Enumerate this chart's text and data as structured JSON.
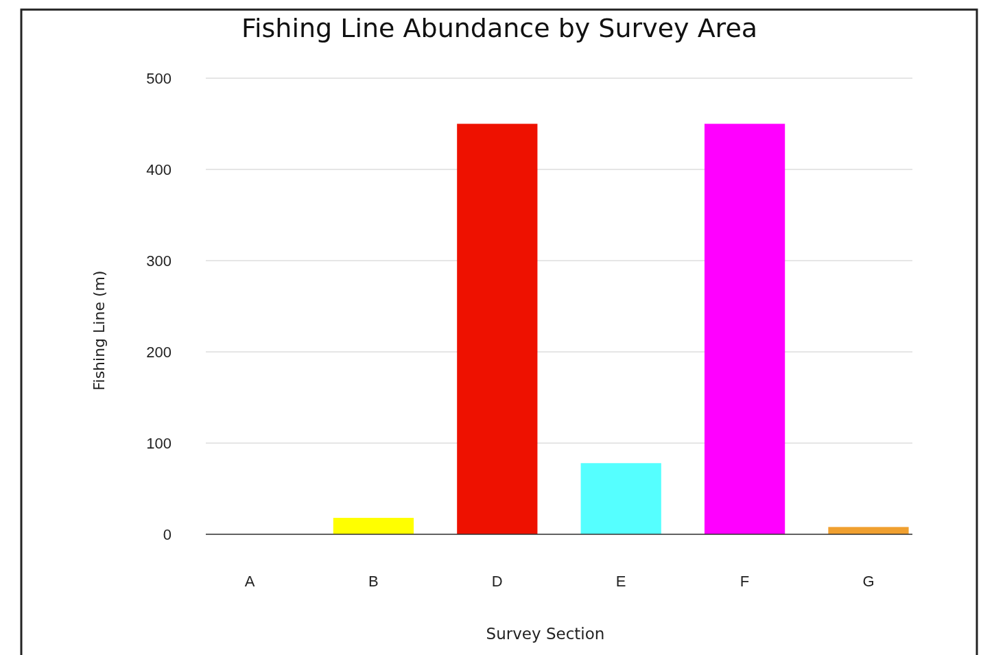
{
  "chart_data": {
    "type": "bar",
    "title": "Fishing Line Abundance by Survey Area",
    "xlabel": "Survey Section",
    "ylabel": "Fishing Line (m)",
    "categories": [
      "A",
      "B",
      "D",
      "E",
      "F",
      "G"
    ],
    "values": [
      0,
      18,
      450,
      78,
      450,
      8
    ],
    "colors": [
      "#6a96cc",
      "#ffff00",
      "#ee1100",
      "#55ffff",
      "#ff00ff",
      "#f0a030"
    ],
    "ylim": [
      0,
      500
    ],
    "yticks": [
      0,
      100,
      200,
      300,
      400,
      500
    ],
    "grid": "y"
  }
}
